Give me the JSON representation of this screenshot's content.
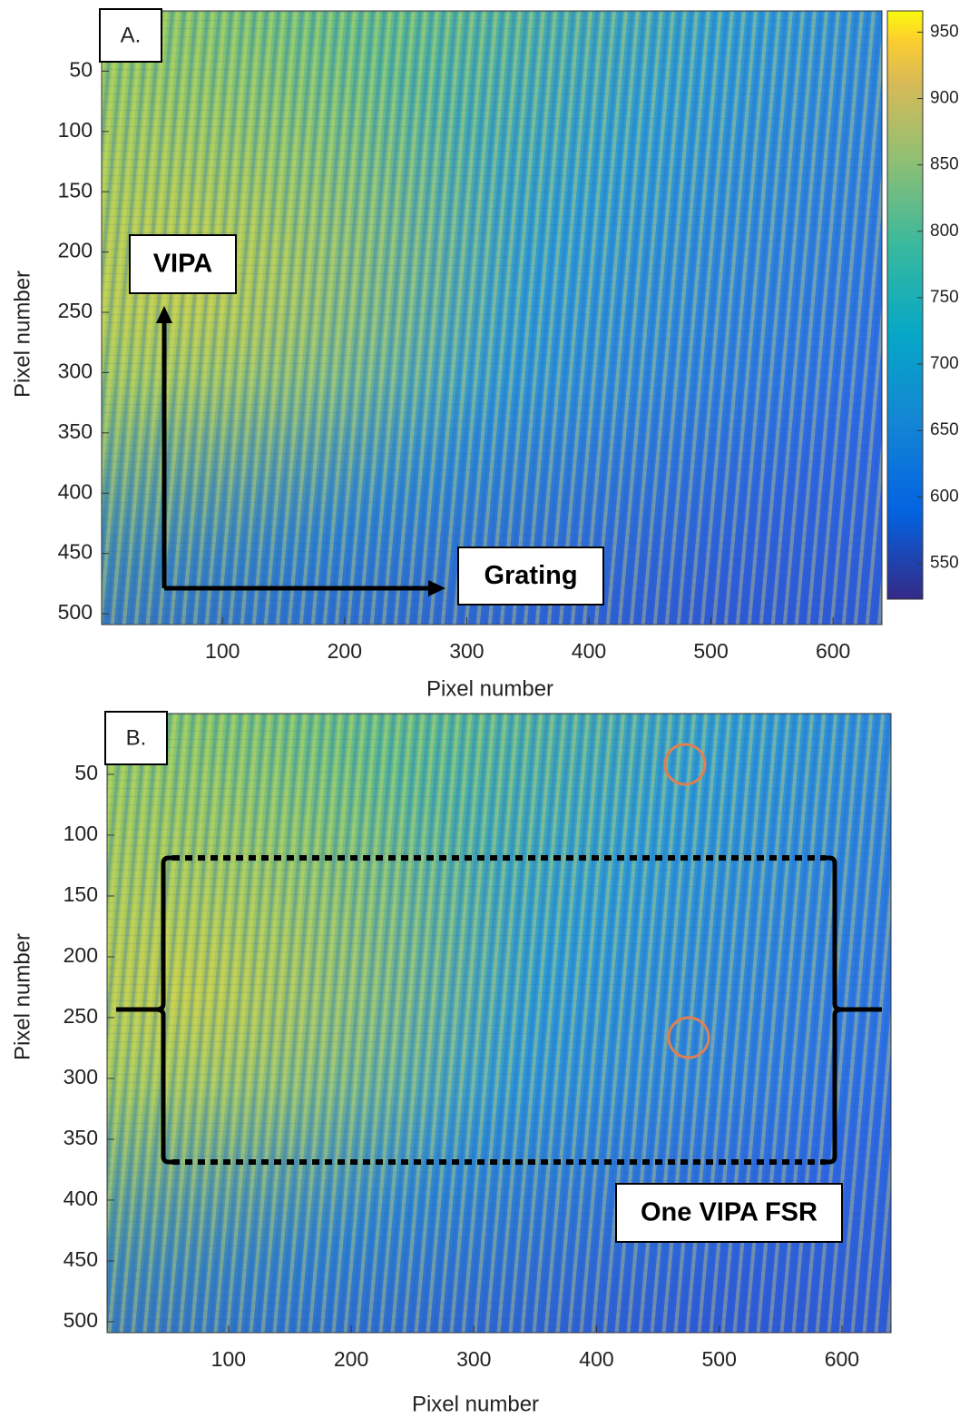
{
  "chart_data": [
    {
      "type": "heatmap",
      "panel_label": "A.",
      "xlabel": "Pixel number",
      "ylabel": "Pixel number",
      "xlim": [
        1,
        640
      ],
      "ylim": [
        0,
        509
      ],
      "xticks": [
        100,
        200,
        300,
        400,
        500,
        600
      ],
      "yticks": [
        50,
        100,
        150,
        200,
        250,
        300,
        350,
        400,
        450,
        500
      ],
      "colorbar": {
        "lim": [
          523,
          966
        ],
        "ticks": [
          550,
          600,
          650,
          700,
          750,
          800,
          850,
          900,
          950
        ]
      },
      "annotations": [
        "VIPA",
        "Grating"
      ]
    },
    {
      "type": "heatmap",
      "panel_label": "B.",
      "xlabel": "Pixel number",
      "ylabel": "Pixel number",
      "xlim": [
        1,
        640
      ],
      "ylim": [
        0,
        509
      ],
      "xticks": [
        100,
        200,
        300,
        400,
        500,
        600
      ],
      "yticks": [
        50,
        100,
        150,
        200,
        250,
        300,
        350,
        400,
        450,
        500
      ],
      "annotations": [
        "One VIPA FSR"
      ]
    }
  ]
}
